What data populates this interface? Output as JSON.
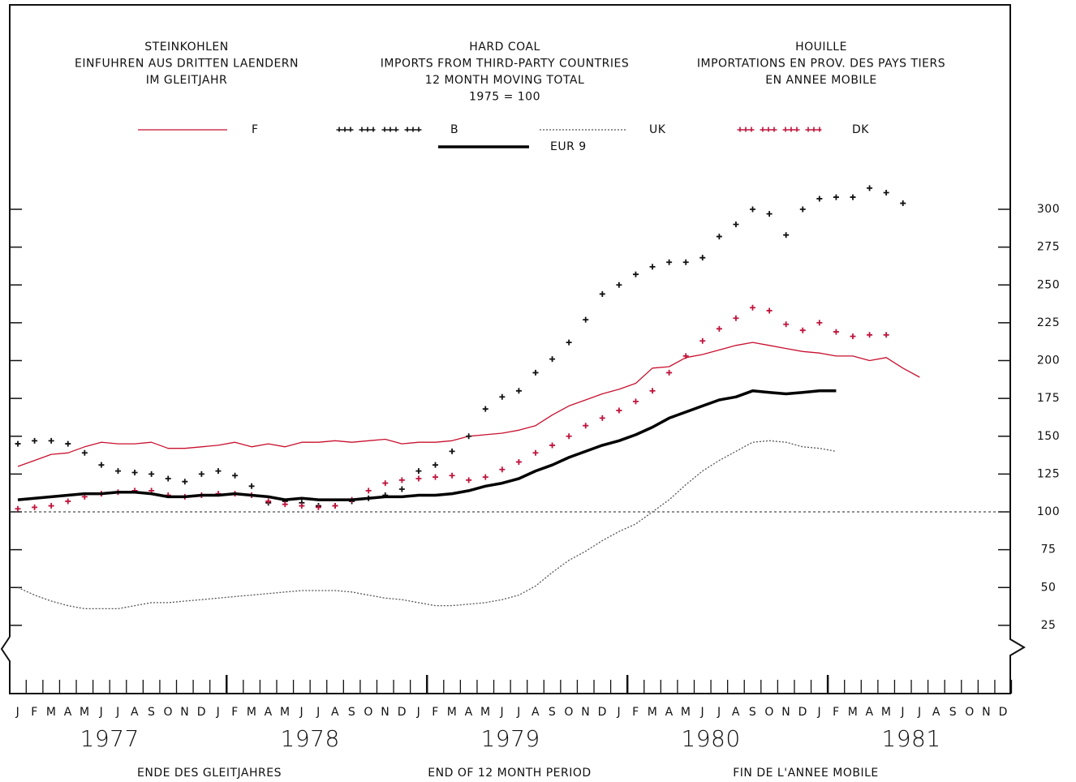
{
  "chart_data": {
    "type": "line",
    "titles": [
      {
        "lines": [
          "STEINKOHLEN",
          "EINFUHREN AUS DRITTEN LAENDERN",
          "IM GLEITJAHR"
        ]
      },
      {
        "lines": [
          "HARD COAL",
          "IMPORTS FROM THIRD-PARTY COUNTRIES",
          "12 MONTH MOVING TOTAL",
          "1975 = 100"
        ]
      },
      {
        "lines": [
          "HOUILLE",
          "IMPORTATIONS EN PROV. DES PAYS TIERS",
          "EN ANNEE MOBILE"
        ]
      }
    ],
    "x_labels": [
      "ENDE DES GLEITJAHRES",
      "END OF 12 MONTH PERIOD",
      "FIN DE L'ANNEE MOBILE"
    ],
    "categories": [
      "J",
      "F",
      "M",
      "A",
      "M",
      "J",
      "J",
      "A",
      "S",
      "O",
      "N",
      "D",
      "J",
      "F",
      "M",
      "A",
      "M",
      "J",
      "J",
      "A",
      "S",
      "O",
      "N",
      "D",
      "J",
      "F",
      "M",
      "A",
      "M",
      "J",
      "J",
      "A",
      "S",
      "O",
      "N",
      "D",
      "J",
      "F",
      "M",
      "A",
      "M",
      "J",
      "J",
      "A",
      "S",
      "O",
      "N",
      "D",
      "J",
      "F",
      "M",
      "A",
      "M",
      "J",
      "J",
      "A",
      "S",
      "O",
      "N",
      "D"
    ],
    "years": [
      "1977",
      "1978",
      "1979",
      "1980",
      "1981"
    ],
    "ylim": [
      0,
      330
    ],
    "yticks": [
      25,
      50,
      75,
      100,
      125,
      150,
      175,
      200,
      225,
      250,
      275,
      300
    ],
    "reference_line": 100,
    "series": [
      {
        "name": "F",
        "color": "#c8102e",
        "style": "line",
        "values": [
          130,
          134,
          138,
          139,
          143,
          146,
          145,
          145,
          146,
          142,
          142,
          143,
          144,
          146,
          143,
          145,
          143,
          146,
          146,
          147,
          146,
          147,
          148,
          145,
          146,
          146,
          147,
          150,
          151,
          152,
          154,
          157,
          164,
          170,
          174,
          178,
          181,
          185,
          195,
          196,
          202,
          204,
          207,
          210,
          212,
          210,
          208,
          206,
          205,
          203,
          203,
          200,
          202,
          195,
          189,
          null,
          null,
          null,
          null,
          null
        ]
      },
      {
        "name": "B",
        "color": "#111111",
        "style": "cross",
        "values": [
          145,
          147,
          147,
          145,
          139,
          131,
          127,
          126,
          125,
          122,
          120,
          125,
          127,
          124,
          117,
          106,
          107,
          106,
          104,
          104,
          107,
          109,
          111,
          115,
          127,
          131,
          140,
          150,
          168,
          176,
          180,
          192,
          201,
          212,
          227,
          244,
          250,
          257,
          262,
          265,
          265,
          268,
          282,
          290,
          300,
          297,
          283,
          300,
          307,
          308,
          308,
          314,
          311,
          304,
          null,
          null,
          null,
          null,
          null,
          null
        ]
      },
      {
        "name": "UK",
        "color": "#555555",
        "style": "dotted",
        "values": [
          50,
          45,
          41,
          38,
          36,
          36,
          36,
          38,
          40,
          40,
          41,
          42,
          43,
          44,
          45,
          46,
          47,
          48,
          48,
          48,
          47,
          45,
          43,
          42,
          40,
          38,
          38,
          39,
          40,
          42,
          45,
          51,
          60,
          68,
          74,
          81,
          87,
          92,
          100,
          108,
          118,
          127,
          134,
          140,
          146,
          147,
          146,
          143,
          142,
          140,
          null,
          null,
          null,
          null,
          null,
          null,
          null,
          null,
          null,
          null
        ]
      },
      {
        "name": "DK",
        "color": "#c0143c",
        "style": "cross",
        "values": [
          102,
          103,
          104,
          107,
          110,
          112,
          113,
          114,
          114,
          111,
          110,
          111,
          112,
          112,
          111,
          107,
          105,
          104,
          103,
          104,
          108,
          114,
          119,
          121,
          122,
          123,
          124,
          121,
          123,
          128,
          133,
          139,
          144,
          150,
          157,
          162,
          167,
          173,
          180,
          192,
          203,
          213,
          221,
          228,
          235,
          233,
          224,
          220,
          225,
          219,
          216,
          217,
          217,
          null,
          null,
          null,
          null,
          null,
          null,
          null
        ]
      },
      {
        "name": "EUR 9",
        "color": "#000000",
        "style": "thick",
        "values": [
          108,
          109,
          110,
          111,
          112,
          112,
          113,
          113,
          112,
          110,
          110,
          111,
          111,
          112,
          111,
          110,
          108,
          109,
          108,
          108,
          108,
          109,
          110,
          110,
          111,
          111,
          112,
          114,
          117,
          119,
          122,
          127,
          131,
          136,
          140,
          144,
          147,
          151,
          156,
          162,
          166,
          170,
          174,
          176,
          180,
          179,
          178,
          179,
          180,
          180,
          null,
          null,
          null,
          null,
          null,
          null,
          null,
          null,
          null,
          null
        ]
      }
    ]
  }
}
